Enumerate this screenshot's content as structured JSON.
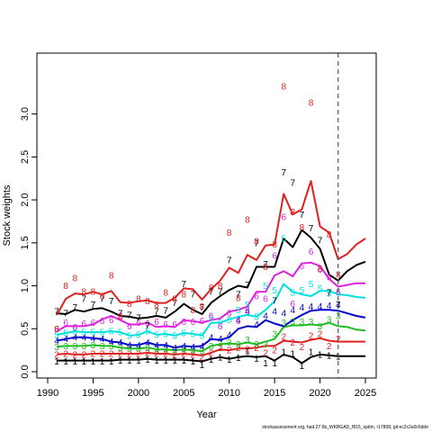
{
  "chart_data": {
    "type": "line",
    "xlabel": "Year",
    "ylabel": "Stock weights",
    "xlim": [
      1990,
      2025
    ],
    "ylim": [
      0,
      3.3
    ],
    "x_ticks": [
      1990,
      1995,
      2000,
      2005,
      2010,
      2015,
      2020,
      2025
    ],
    "y_ticks": [
      0.0,
      0.5,
      1.0,
      1.5,
      2.0,
      2.5,
      3.0
    ],
    "x_tick_labels": [
      "1990",
      "1995",
      "2000",
      "2005",
      "2010",
      "2015",
      "2020",
      "2025"
    ],
    "y_tick_labels": [
      "0.0",
      "0.5",
      "1.0",
      "1.5",
      "2.0",
      "2.5",
      "3.0"
    ],
    "vline_x": 2022,
    "grid": false,
    "footer": "stockassessment.org, had.27.6b_WKBGAD_f815_optim, r17808, git:ec2c2a0c6dde",
    "series": [
      {
        "label": "1",
        "color": "#000000",
        "line_x": [
          1991,
          1992,
          1993,
          1994,
          1995,
          1996,
          1997,
          1998,
          1999,
          2000,
          2001,
          2002,
          2003,
          2004,
          2005,
          2006,
          2007,
          2008,
          2009,
          2010,
          2011,
          2012,
          2013,
          2014,
          2015,
          2016,
          2017,
          2018,
          2019,
          2020,
          2021,
          2022,
          2023,
          2024,
          2025
        ],
        "line_y": [
          0.13,
          0.13,
          0.13,
          0.13,
          0.13,
          0.13,
          0.13,
          0.14,
          0.14,
          0.14,
          0.15,
          0.14,
          0.14,
          0.14,
          0.14,
          0.13,
          0.12,
          0.15,
          0.17,
          0.15,
          0.17,
          0.18,
          0.17,
          0.18,
          0.13,
          0.2,
          0.17,
          0.1,
          0.17,
          0.2,
          0.19,
          0.18,
          0.18,
          0.18,
          0.18
        ],
        "pts_x": [
          1991,
          1992,
          1993,
          1994,
          1995,
          1996,
          1997,
          1998,
          1999,
          2000,
          2001,
          2002,
          2003,
          2004,
          2005,
          2006,
          2007,
          2008,
          2009,
          2010,
          2011,
          2012,
          2013,
          2014,
          2015,
          2016,
          2017,
          2018,
          2019,
          2020,
          2021,
          2022
        ],
        "pts_y": [
          0.12,
          0.12,
          0.12,
          0.12,
          0.12,
          0.12,
          0.12,
          0.13,
          0.13,
          0.13,
          0.14,
          0.13,
          0.13,
          0.13,
          0.13,
          0.12,
          0.08,
          0.14,
          0.17,
          0.14,
          0.16,
          0.24,
          0.15,
          0.1,
          0.1,
          0.23,
          0.21,
          0.07,
          0.23,
          0.2,
          0.19,
          0.18
        ]
      },
      {
        "label": "2",
        "color": "#DF2020",
        "line_x": [
          1991,
          1992,
          1993,
          1994,
          1995,
          1996,
          1997,
          1998,
          1999,
          2000,
          2001,
          2002,
          2003,
          2004,
          2005,
          2006,
          2007,
          2008,
          2009,
          2010,
          2011,
          2012,
          2013,
          2014,
          2015,
          2016,
          2017,
          2018,
          2019,
          2020,
          2021,
          2022,
          2023,
          2024,
          2025
        ],
        "line_y": [
          0.2,
          0.21,
          0.2,
          0.2,
          0.21,
          0.21,
          0.21,
          0.21,
          0.21,
          0.21,
          0.22,
          0.21,
          0.21,
          0.2,
          0.21,
          0.2,
          0.19,
          0.22,
          0.26,
          0.25,
          0.27,
          0.27,
          0.28,
          0.3,
          0.3,
          0.36,
          0.35,
          0.34,
          0.37,
          0.39,
          0.36,
          0.35,
          0.35,
          0.35,
          0.35
        ],
        "pts_x": [
          1991,
          1992,
          1993,
          1994,
          1995,
          1996,
          1997,
          1998,
          1999,
          2000,
          2001,
          2002,
          2003,
          2004,
          2005,
          2006,
          2007,
          2008,
          2009,
          2010,
          2011,
          2012,
          2013,
          2014,
          2015,
          2016,
          2017,
          2018,
          2019,
          2020,
          2021,
          2022
        ],
        "pts_y": [
          0.2,
          0.21,
          0.2,
          0.2,
          0.21,
          0.21,
          0.21,
          0.21,
          0.21,
          0.21,
          0.22,
          0.21,
          0.21,
          0.2,
          0.21,
          0.2,
          0.17,
          0.22,
          0.28,
          0.25,
          0.28,
          0.26,
          0.28,
          0.22,
          0.25,
          0.41,
          0.34,
          0.29,
          0.42,
          0.44,
          0.3,
          0.38
        ]
      },
      {
        "label": "3",
        "color": "#22BB22",
        "line_x": [
          1991,
          1992,
          1993,
          1994,
          1995,
          1996,
          1997,
          1998,
          1999,
          2000,
          2001,
          2002,
          2003,
          2004,
          2005,
          2006,
          2007,
          2008,
          2009,
          2010,
          2011,
          2012,
          2013,
          2014,
          2015,
          2016,
          2017,
          2018,
          2019,
          2020,
          2021,
          2022,
          2023,
          2024,
          2025
        ],
        "line_y": [
          0.29,
          0.3,
          0.3,
          0.3,
          0.31,
          0.3,
          0.3,
          0.28,
          0.27,
          0.27,
          0.28,
          0.26,
          0.26,
          0.25,
          0.26,
          0.25,
          0.24,
          0.3,
          0.32,
          0.33,
          0.32,
          0.34,
          0.32,
          0.35,
          0.38,
          0.52,
          0.54,
          0.54,
          0.55,
          0.54,
          0.57,
          0.53,
          0.52,
          0.49,
          0.48
        ],
        "pts_x": [
          1991,
          1992,
          1993,
          1994,
          1995,
          1996,
          1997,
          1998,
          1999,
          2000,
          2001,
          2002,
          2003,
          2004,
          2005,
          2006,
          2007,
          2008,
          2009,
          2010,
          2011,
          2012,
          2013,
          2014,
          2015,
          2016,
          2017,
          2018,
          2019,
          2020,
          2021,
          2022
        ],
        "pts_y": [
          0.29,
          0.3,
          0.3,
          0.3,
          0.31,
          0.3,
          0.3,
          0.28,
          0.27,
          0.27,
          0.28,
          0.26,
          0.26,
          0.25,
          0.26,
          0.25,
          0.24,
          0.3,
          0.33,
          0.34,
          0.32,
          0.37,
          0.32,
          0.32,
          0.44,
          0.57,
          0.58,
          0.58,
          0.58,
          0.53,
          0.61,
          0.65
        ]
      },
      {
        "label": "4",
        "color": "#0000CC",
        "line_x": [
          1991,
          1992,
          1993,
          1994,
          1995,
          1996,
          1997,
          1998,
          1999,
          2000,
          2001,
          2002,
          2003,
          2004,
          2005,
          2006,
          2007,
          2008,
          2009,
          2010,
          2011,
          2012,
          2013,
          2014,
          2015,
          2016,
          2017,
          2018,
          2019,
          2020,
          2021,
          2022,
          2023,
          2024,
          2025
        ],
        "line_y": [
          0.36,
          0.38,
          0.4,
          0.4,
          0.39,
          0.38,
          0.35,
          0.34,
          0.31,
          0.31,
          0.34,
          0.31,
          0.31,
          0.28,
          0.3,
          0.29,
          0.3,
          0.38,
          0.37,
          0.4,
          0.5,
          0.53,
          0.52,
          0.6,
          0.56,
          0.53,
          0.6,
          0.66,
          0.71,
          0.72,
          0.72,
          0.71,
          0.68,
          0.65,
          0.63
        ],
        "pts_x": [
          1991,
          1992,
          1993,
          1994,
          1995,
          1996,
          1997,
          1998,
          1999,
          2000,
          2001,
          2002,
          2003,
          2004,
          2005,
          2006,
          2007,
          2008,
          2009,
          2010,
          2011,
          2012,
          2013,
          2014,
          2015,
          2016,
          2017,
          2018,
          2019,
          2020,
          2021,
          2022
        ],
        "pts_y": [
          0.36,
          0.38,
          0.4,
          0.4,
          0.39,
          0.38,
          0.35,
          0.34,
          0.31,
          0.31,
          0.34,
          0.31,
          0.31,
          0.28,
          0.3,
          0.29,
          0.3,
          0.4,
          0.38,
          0.43,
          0.6,
          0.7,
          0.55,
          0.65,
          0.7,
          0.68,
          0.72,
          0.75,
          0.76,
          0.76,
          0.77,
          0.78
        ]
      },
      {
        "label": "5",
        "color": "#00E0E0",
        "line_x": [
          1991,
          1992,
          1993,
          1994,
          1995,
          1996,
          1997,
          1998,
          1999,
          2000,
          2001,
          2002,
          2003,
          2004,
          2005,
          2006,
          2007,
          2008,
          2009,
          2010,
          2011,
          2012,
          2013,
          2014,
          2015,
          2016,
          2017,
          2018,
          2019,
          2020,
          2021,
          2022,
          2023,
          2024,
          2025
        ],
        "line_y": [
          0.43,
          0.45,
          0.47,
          0.46,
          0.46,
          0.46,
          0.47,
          0.46,
          0.42,
          0.43,
          0.47,
          0.43,
          0.44,
          0.42,
          0.45,
          0.44,
          0.42,
          0.57,
          0.57,
          0.61,
          0.64,
          0.66,
          0.64,
          0.72,
          0.82,
          1.02,
          0.93,
          0.9,
          0.88,
          0.94,
          0.94,
          0.9,
          0.89,
          0.87,
          0.86
        ],
        "pts_x": [
          1991,
          1992,
          1993,
          1994,
          1995,
          1996,
          1997,
          1998,
          1999,
          2000,
          2001,
          2002,
          2003,
          2004,
          2005,
          2006,
          2007,
          2008,
          2009,
          2010,
          2011,
          2012,
          2013,
          2014,
          2015,
          2016,
          2017,
          2018,
          2019,
          2020,
          2021,
          2022
        ],
        "pts_y": [
          0.43,
          0.45,
          0.47,
          0.46,
          0.46,
          0.46,
          0.47,
          0.46,
          0.42,
          0.43,
          0.47,
          0.43,
          0.44,
          0.42,
          0.45,
          0.44,
          0.42,
          0.63,
          0.57,
          0.6,
          0.72,
          0.78,
          0.64,
          1.0,
          0.95,
          1.55,
          0.92,
          0.95,
          1.02,
          0.97,
          0.91,
          0.92
        ]
      },
      {
        "label": "6",
        "color": "#DD22DD",
        "line_x": [
          1991,
          1992,
          1993,
          1994,
          1995,
          1996,
          1997,
          1998,
          1999,
          2000,
          2001,
          2002,
          2003,
          2004,
          2005,
          2006,
          2007,
          2008,
          2009,
          2010,
          2011,
          2012,
          2013,
          2014,
          2015,
          2016,
          2017,
          2018,
          2019,
          2020,
          2021,
          2022,
          2023,
          2024,
          2025
        ],
        "line_y": [
          0.47,
          0.53,
          0.53,
          0.53,
          0.55,
          0.61,
          0.65,
          0.6,
          0.55,
          0.55,
          0.57,
          0.52,
          0.53,
          0.52,
          0.6,
          0.59,
          0.57,
          0.6,
          0.62,
          0.7,
          0.72,
          0.76,
          0.93,
          0.93,
          1.12,
          1.17,
          1.11,
          1.26,
          1.27,
          1.23,
          1.08,
          0.99,
          1.01,
          1.03,
          1.03
        ],
        "pts_x": [
          1991,
          1992,
          1993,
          1994,
          1995,
          1996,
          1997,
          1998,
          1999,
          2000,
          2001,
          2002,
          2003,
          2004,
          2005,
          2006,
          2007,
          2008,
          2009,
          2010,
          2011,
          2012,
          2013,
          2014,
          2015,
          2016,
          2017,
          2018,
          2019,
          2020,
          2021,
          2022
        ],
        "pts_y": [
          0.5,
          0.57,
          0.52,
          0.56,
          0.57,
          0.59,
          0.6,
          0.65,
          0.53,
          0.57,
          0.56,
          0.58,
          0.55,
          0.55,
          0.58,
          0.58,
          0.59,
          0.65,
          0.53,
          0.68,
          0.59,
          0.72,
          0.88,
          0.85,
          1.35,
          1.8,
          0.79,
          1.23,
          1.4,
          1.19,
          1.1,
          0.93
        ]
      },
      {
        "label": "7",
        "color": "#000000",
        "line_x": [
          1991,
          1992,
          1993,
          1994,
          1995,
          1996,
          1997,
          1998,
          1999,
          2000,
          2001,
          2002,
          2003,
          2004,
          2005,
          2006,
          2007,
          2008,
          2009,
          2010,
          2011,
          2012,
          2013,
          2014,
          2015,
          2016,
          2017,
          2018,
          2019,
          2020,
          2021,
          2022,
          2023,
          2024,
          2025
        ],
        "line_y": [
          0.68,
          0.67,
          0.72,
          0.7,
          0.73,
          0.74,
          0.7,
          0.65,
          0.64,
          0.62,
          0.63,
          0.65,
          0.63,
          0.7,
          0.79,
          0.72,
          0.67,
          0.8,
          0.88,
          0.95,
          1.0,
          0.98,
          1.22,
          1.22,
          1.22,
          1.55,
          1.45,
          1.65,
          1.56,
          1.43,
          1.13,
          1.06,
          1.17,
          1.24,
          1.28
        ],
        "pts_x": [
          1991,
          1992,
          1993,
          1994,
          1995,
          1996,
          1997,
          1998,
          1999,
          2000,
          2001,
          2002,
          2003,
          2004,
          2005,
          2006,
          2007,
          2008,
          2009,
          2010,
          2011,
          2012,
          2013,
          2014,
          2015,
          2016,
          2017,
          2018,
          2019,
          2020,
          2021,
          2022
        ],
        "pts_y": [
          0.7,
          0.68,
          0.75,
          0.85,
          0.78,
          0.85,
          0.82,
          0.68,
          0.66,
          0.63,
          0.54,
          0.7,
          0.71,
          0.8,
          1.02,
          0.9,
          0.75,
          0.93,
          0.93,
          1.3,
          0.9,
          1.01,
          1.5,
          1.25,
          0.83,
          2.32,
          2.2,
          1.83,
          1.67,
          1.53,
          0.92,
          0.78
        ]
      },
      {
        "label": "8",
        "color": "#DF2020",
        "line_x": [
          1991,
          1992,
          1993,
          1994,
          1995,
          1996,
          1997,
          1998,
          1999,
          2000,
          2001,
          2002,
          2003,
          2004,
          2005,
          2006,
          2007,
          2008,
          2009,
          2010,
          2011,
          2012,
          2013,
          2014,
          2015,
          2016,
          2017,
          2018,
          2019,
          2020,
          2021,
          2022,
          2023,
          2024,
          2025
        ],
        "line_y": [
          0.66,
          0.85,
          0.91,
          0.9,
          0.93,
          0.9,
          0.94,
          0.81,
          0.8,
          0.82,
          0.83,
          0.8,
          0.8,
          0.86,
          0.97,
          0.96,
          0.84,
          0.96,
          1.06,
          1.21,
          1.15,
          1.36,
          1.3,
          1.47,
          1.48,
          2.07,
          1.83,
          1.89,
          2.22,
          1.69,
          1.62,
          1.31,
          1.37,
          1.48,
          1.55
        ],
        "pts_x": [
          1991,
          1992,
          1993,
          1994,
          1995,
          1996,
          1997,
          1998,
          1999,
          2000,
          2001,
          2002,
          2003,
          2004,
          2005,
          2006,
          2007,
          2008,
          2009,
          2010,
          2011,
          2012,
          2013,
          2014,
          2015,
          2016,
          2017,
          2018,
          2019,
          2020,
          2021,
          2022
        ],
        "pts_y": [
          0.5,
          1.0,
          1.09,
          0.93,
          0.93,
          0.88,
          1.12,
          0.64,
          0.79,
          0.85,
          0.82,
          0.78,
          0.92,
          0.85,
          0.9,
          0.72,
          0.76,
          0.98,
          1.0,
          1.62,
          0.86,
          1.77,
          1.52,
          1.22,
          1.48,
          3.32,
          1.86,
          1.68,
          3.13,
          1.2,
          1.6,
          1.13
        ]
      }
    ]
  }
}
